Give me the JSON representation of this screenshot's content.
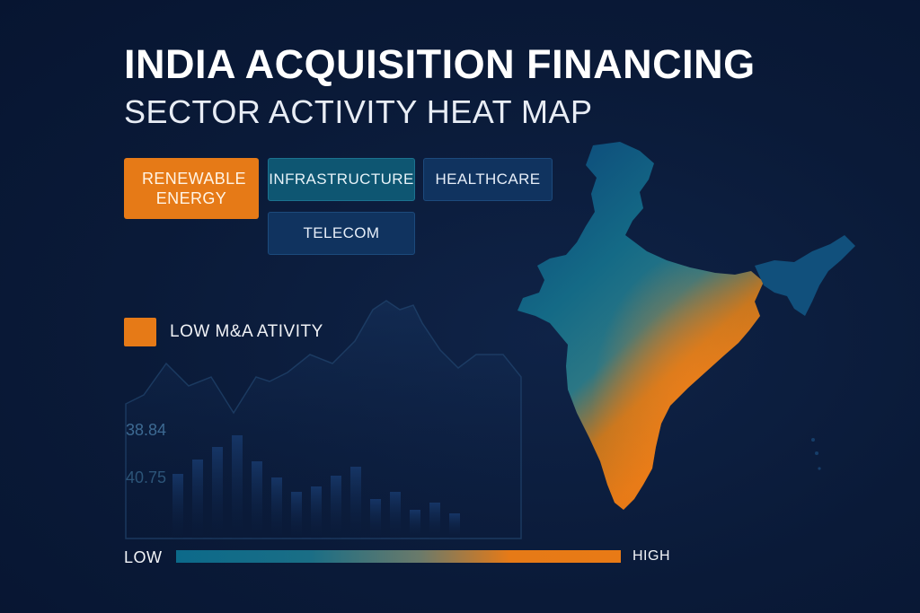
{
  "header": {
    "title": "INDIA ACQUISITION FINANCING",
    "subtitle": "SECTOR ACTIVITY HEAT MAP"
  },
  "sectors": {
    "renewable": "RENEWABLE ENERGY",
    "infrastructure": "INFRASTRUCTURE",
    "healthcare": "HEALTHCARE",
    "telecom": "TELECOM"
  },
  "legend": {
    "label": "LOW M&A ATIVITY",
    "color": "#e67a17"
  },
  "background_stats": {
    "value_1": "38.84",
    "value_2": "40.75"
  },
  "scale": {
    "low_label": "LOW",
    "high_label": "HIGH",
    "low_color": "#0c6a8a",
    "high_color": "#e67a17"
  },
  "colors": {
    "background": "#0a1a38",
    "accent_orange": "#e67a17",
    "accent_teal": "#0e5672",
    "accent_navy": "#10335f"
  }
}
